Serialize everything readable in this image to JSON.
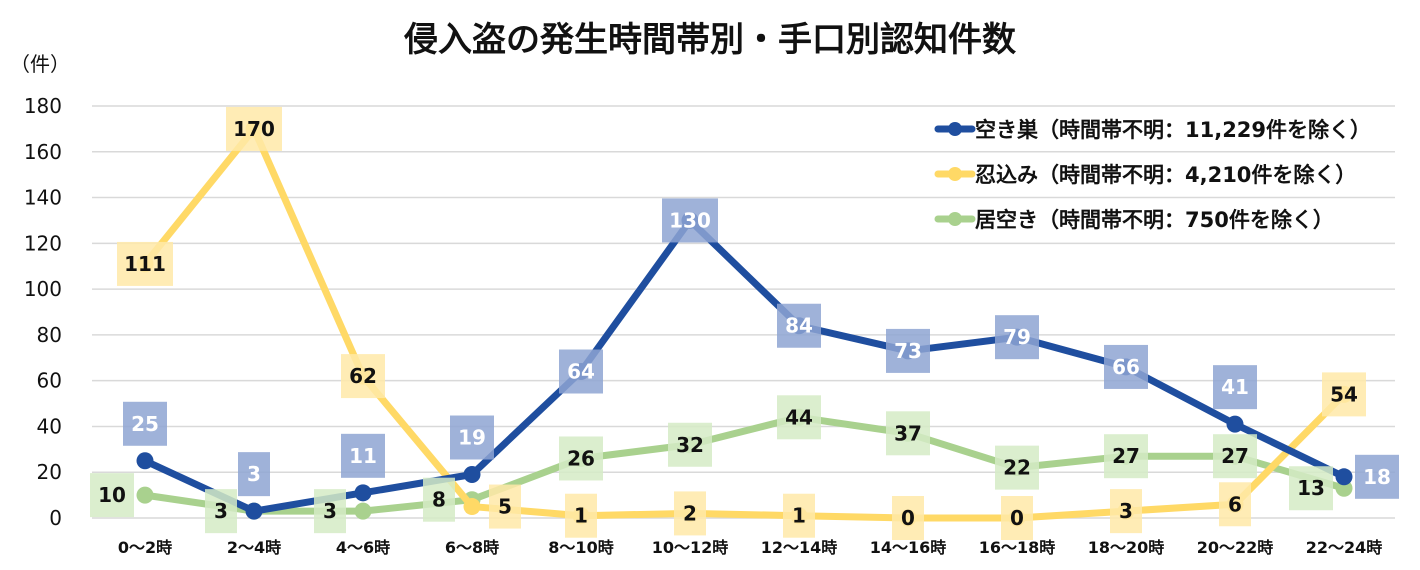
{
  "chart_data": {
    "type": "line",
    "title": "侵入盗の発生時間帯別・手口別認知件数",
    "ylabel": "（件）",
    "xlabel": "",
    "ylim": [
      0,
      180
    ],
    "yticks": [
      0,
      20,
      40,
      60,
      80,
      100,
      120,
      140,
      160,
      180
    ],
    "grid": true,
    "legend_position": "top-right",
    "categories": [
      "0～2時",
      "2～4時",
      "4～6時",
      "6～8時",
      "8～10時",
      "10～12時",
      "12～14時",
      "14～16時",
      "16～18時",
      "18～20時",
      "20～22時",
      "22～24時"
    ],
    "series": [
      {
        "name": "空き巣（時間帯不明：11,229件を除く）",
        "color": "#1F4E9F",
        "label_bg": "#8EA4D2",
        "label_color": "#FFFFFF",
        "values": [
          25,
          3,
          11,
          19,
          64,
          130,
          84,
          73,
          79,
          66,
          41,
          18
        ]
      },
      {
        "name": "忍込み（時間帯不明：4,210件を除く）",
        "color": "#FFD966",
        "label_bg": "#FFE9A8",
        "label_color": "#111111",
        "values": [
          111,
          170,
          62,
          5,
          1,
          2,
          1,
          0,
          0,
          3,
          6,
          54
        ]
      },
      {
        "name": "居空き（時間帯不明：750件を除く）",
        "color": "#A9D18E",
        "label_bg": "#D5EBC5",
        "label_color": "#111111",
        "values": [
          10,
          3,
          3,
          8,
          26,
          32,
          44,
          37,
          22,
          27,
          27,
          13
        ]
      }
    ]
  }
}
